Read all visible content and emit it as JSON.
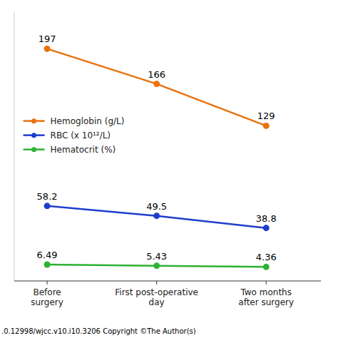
{
  "chart_data": {
    "type": "line",
    "categories": [
      "Before\nsurgery",
      "First post-operative\nday",
      "Two months\nafter surgery"
    ],
    "series": [
      {
        "name": "Hemoglobin (g/L)",
        "color": "#E8720C",
        "marker": "circle",
        "values": [
          197,
          166,
          129
        ]
      },
      {
        "name": "RBC (x 10¹²/L)",
        "color": "#1F3ECC",
        "marker": "circle",
        "values": [
          58.2,
          49.5,
          38.8
        ]
      },
      {
        "name": "Hematocrit (%)",
        "color": "#2DB232",
        "marker": "circle",
        "values": [
          6.49,
          5.43,
          4.36
        ]
      }
    ],
    "ylim": [
      -8,
      230
    ],
    "data_labels": true,
    "tick_labels": "x",
    "grid": false,
    "legend": "left",
    "background_color": "#ffffff",
    "annotations": [
      ".0.12998/wjcc.v10.i10.3206 ",
      "Copyright",
      " ©The Author(s)"
    ]
  }
}
